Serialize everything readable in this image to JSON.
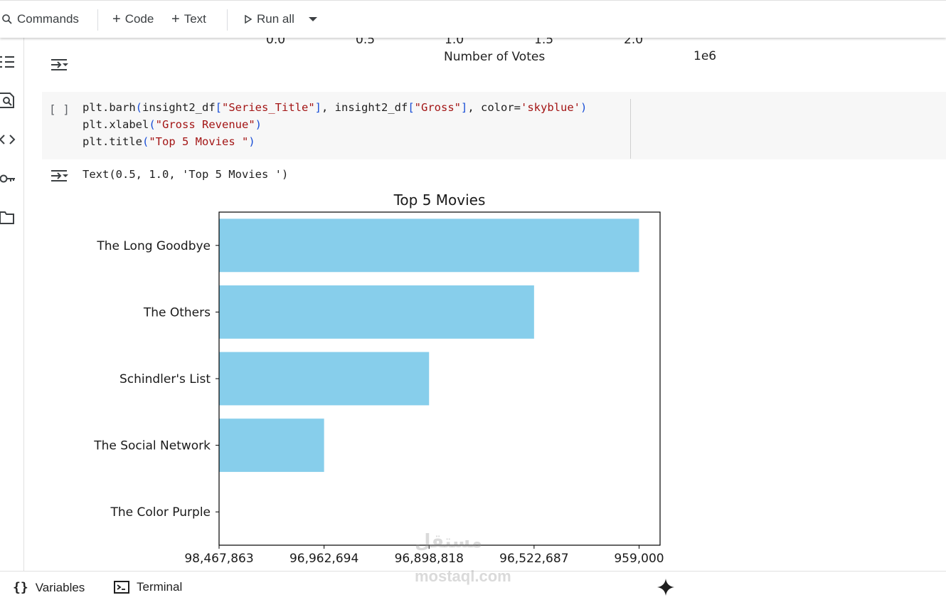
{
  "toolbar": {
    "commands_label": "Commands",
    "code_label": "Code",
    "text_label": "Text",
    "run_all_label": "Run all"
  },
  "previous_output": {
    "x_ticks": [
      "0.0",
      "0.5",
      "1.0",
      "1.5",
      "2.0"
    ],
    "xlabel": "Number of Votes",
    "offset_label": "1e6"
  },
  "cell": {
    "run_indicator": "[ ]",
    "lines": [
      [
        {
          "t": "plt.barh",
          "c": ""
        },
        {
          "t": "(",
          "c": "p"
        },
        {
          "t": "insight2_df",
          "c": ""
        },
        {
          "t": "[",
          "c": "p"
        },
        {
          "t": "\"Series_Title\"",
          "c": "s"
        },
        {
          "t": "]",
          "c": "p"
        },
        {
          "t": ", insight2_df",
          "c": ""
        },
        {
          "t": "[",
          "c": "p"
        },
        {
          "t": "\"Gross\"",
          "c": "s"
        },
        {
          "t": "]",
          "c": "p"
        },
        {
          "t": ", color=",
          "c": ""
        },
        {
          "t": "'skyblue'",
          "c": "s"
        },
        {
          "t": ")",
          "c": "p"
        }
      ],
      [
        {
          "t": "plt.xlabel",
          "c": ""
        },
        {
          "t": "(",
          "c": "p"
        },
        {
          "t": "\"Gross Revenue\"",
          "c": "s"
        },
        {
          "t": ")",
          "c": "p"
        }
      ],
      [
        {
          "t": "plt.title",
          "c": ""
        },
        {
          "t": "(",
          "c": "p"
        },
        {
          "t": "\"Top 5 Movies \"",
          "c": "s"
        },
        {
          "t": ")",
          "c": "p"
        }
      ]
    ]
  },
  "output": {
    "text": "Text(0.5, 1.0, 'Top 5 Movies ')"
  },
  "chart_data": {
    "type": "bar",
    "orientation": "horizontal",
    "title": "Top 5 Movies",
    "xlabel": "Gross Revenue",
    "categories": [
      "The Color Purple",
      "The Social Network",
      "Schindler's List",
      "The Others",
      "The Long Goodbye"
    ],
    "values": [
      0,
      1,
      2,
      3,
      4
    ],
    "x_tick_labels": [
      "98,467,863",
      "96,962,694",
      "96,898,818",
      "96,522,687",
      "959,000"
    ],
    "xlim": [
      0,
      4.2
    ],
    "bar_color": "#87ceeb",
    "grid": false
  },
  "bottombar": {
    "variables_label": "Variables",
    "terminal_label": "Terminal"
  },
  "watermark": {
    "arabic": "مستقل",
    "latin": "mostaql.com"
  }
}
